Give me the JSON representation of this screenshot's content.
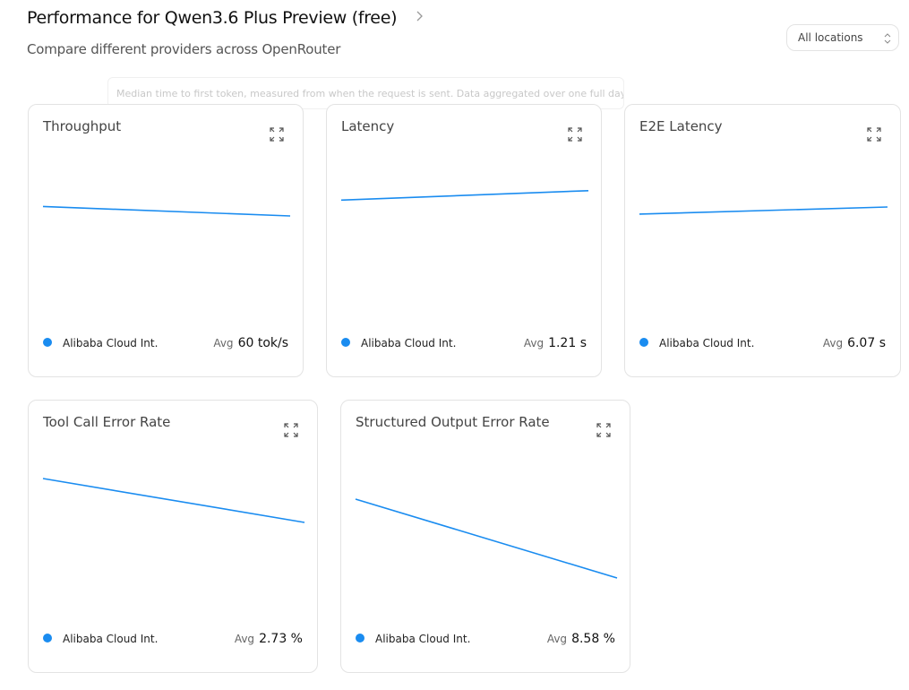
{
  "header": {
    "title": "Performance for Qwen3.6 Plus Preview (free)",
    "subtitle": "Compare different providers across OpenRouter"
  },
  "location_select": "All locations",
  "tooltip": "Median time to first token, measured from when the request is sent. Data aggregated over one full day.",
  "cards": [
    {
      "title": "Throughput",
      "chart": {
        "type": "line",
        "values": [
          62,
          57
        ],
        "ylim": [
          0,
          95
        ],
        "color": "#1a8cf0"
      },
      "legend": "Alibaba Cloud Int.",
      "avg_label": "Avg",
      "avg": "60 tok/s"
    },
    {
      "title": "Latency",
      "chart": {
        "type": "line",
        "values": [
          1.17,
          1.26
        ],
        "ylim": [
          0,
          1.7
        ],
        "color": "#1a8cf0"
      },
      "legend": "Alibaba Cloud Int.",
      "avg_label": "Avg",
      "avg": "1.21 s"
    },
    {
      "title": "E2E Latency",
      "chart": {
        "type": "line",
        "values": [
          5.86,
          6.24
        ],
        "ylim": [
          0,
          9.6
        ],
        "color": "#1a8cf0"
      },
      "legend": "Alibaba Cloud Int.",
      "avg_label": "Avg",
      "avg": "6.07 s"
    },
    {
      "title": "Tool Call Error Rate",
      "chart": {
        "type": "line",
        "values": [
          3.14,
          2.16
        ],
        "ylim": [
          0,
          4
        ],
        "color": "#1a8cf0"
      },
      "legend": "Alibaba Cloud Int.",
      "avg_label": "Avg",
      "avg": "2.73 %"
    },
    {
      "title": "Structured Output Error Rate",
      "chart": {
        "type": "line",
        "values": [
          10.05,
          3.45
        ],
        "ylim": [
          0,
          15
        ],
        "color": "#1a8cf0"
      },
      "legend": "Alibaba Cloud Int.",
      "avg_label": "Avg",
      "avg": "8.58 %"
    }
  ]
}
